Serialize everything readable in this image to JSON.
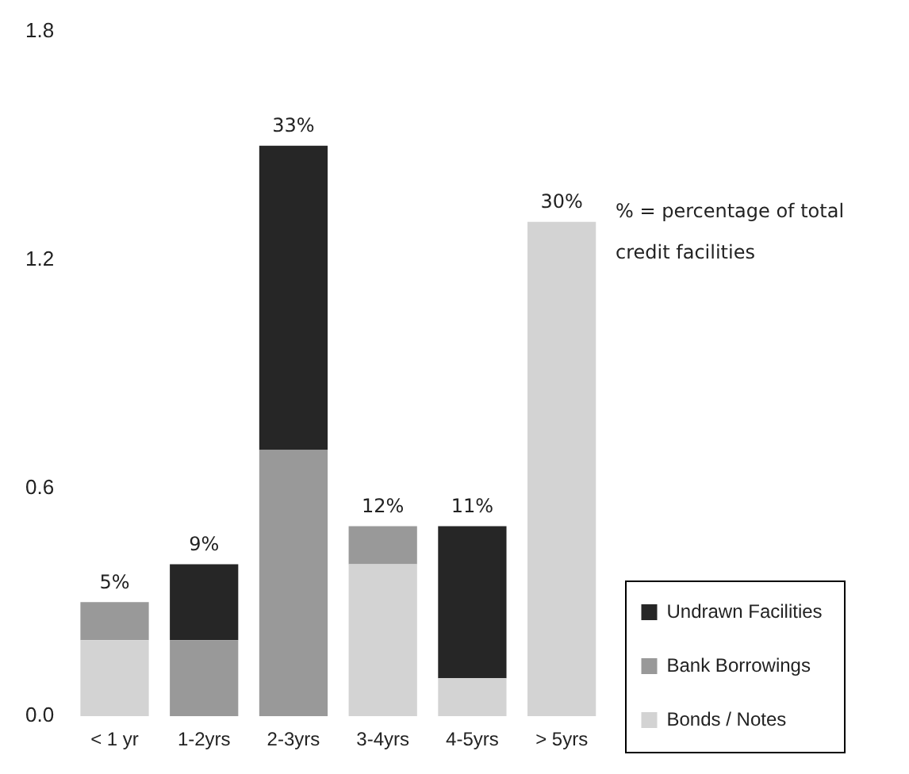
{
  "chart_data": {
    "type": "bar",
    "stacked": true,
    "categories": [
      "< 1 yr",
      "1-2yrs",
      "2-3yrs",
      "3-4yrs",
      "4-5yrs",
      "> 5yrs"
    ],
    "series": [
      {
        "name": "Bonds / Notes",
        "color": "#d3d3d3",
        "values": [
          0.2,
          null,
          null,
          0.4,
          0.1,
          1.3
        ]
      },
      {
        "name": "Bank Borrowings",
        "color": "#999999",
        "values": [
          0.1,
          0.2,
          0.7,
          0.1,
          null,
          null
        ]
      },
      {
        "name": "Undrawn Facilities",
        "color": "#262626",
        "values": [
          null,
          0.2,
          0.8,
          null,
          0.4,
          null
        ]
      }
    ],
    "ylim": [
      0,
      1.8
    ],
    "yticks": [
      {
        "value": 0,
        "label": "0.0"
      },
      0.6,
      1.2,
      1.8
    ],
    "annotations": [
      "% = percentage of total credit facilities",
      {
        "text": "5%",
        "x": "< 1 yr",
        "y": 0.3
      },
      {
        "text": "9%",
        "x": "1-2yrs",
        "y": 0.4
      },
      {
        "text": "33%",
        "x": "2-3yrs",
        "y": 1.5
      },
      {
        "text": "12%",
        "x": "3-4yrs",
        "y": 0.5
      },
      {
        "text": "11%",
        "x": "4-5yrs",
        "y": 0.5
      },
      {
        "text": "30%",
        "x": "> 5yrs",
        "y": 1.3
      }
    ],
    "grid": false,
    "legend": "bottom right"
  }
}
